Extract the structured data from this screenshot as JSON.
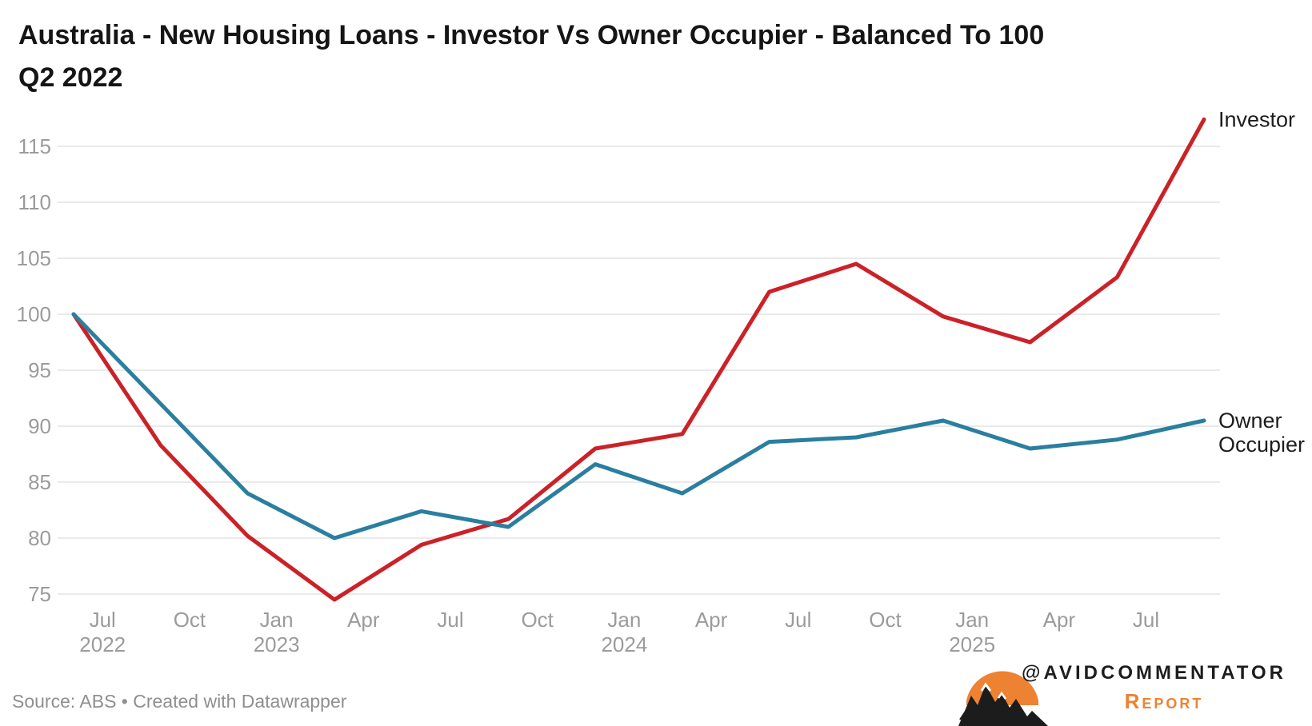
{
  "title": {
    "line1": "Australia - New Housing Loans - Investor Vs Owner Occupier - Balanced To 100",
    "line2": "Q2 2022"
  },
  "source_note": "Source: ABS • Created with Datawrapper",
  "branding": {
    "handle": "@AVIDCOMMENTATOR",
    "wordmark": "Report",
    "orange": "#ee8233",
    "icon": "mountain-sun-logo"
  },
  "chart_data": {
    "type": "line",
    "title": "Australia - New Housing Loans - Investor Vs Owner Occupier - Balanced To 100 Q2 2022",
    "x": [
      "Q2 2022",
      "Q3 2022",
      "Q4 2022",
      "Q1 2023",
      "Q2 2023",
      "Q3 2023",
      "Q4 2023",
      "Q1 2024",
      "Q2 2024",
      "Q3 2024",
      "Q4 2024",
      "Q1 2025",
      "Q2 2025",
      "Q3 2025"
    ],
    "series": [
      {
        "name": "Investor",
        "color": "#cb2127",
        "values": [
          100,
          88.3,
          80.2,
          74.5,
          79.4,
          81.7,
          88.0,
          89.3,
          102.0,
          104.5,
          99.8,
          97.5,
          103.3,
          117.4
        ]
      },
      {
        "name": "Owner Occupier",
        "color": "#2a7f9f",
        "values": [
          100,
          92.0,
          84.0,
          80.0,
          82.4,
          81.0,
          86.6,
          84.0,
          88.6,
          89.0,
          90.5,
          88.0,
          88.8,
          90.5
        ]
      }
    ],
    "ylabel": "",
    "xlabel": "",
    "ylim": [
      74,
      117.5
    ],
    "yticks": [
      75,
      80,
      85,
      90,
      95,
      100,
      105,
      110,
      115
    ],
    "xticks": [
      {
        "label": "Jul",
        "year": "2022",
        "month_index": 1
      },
      {
        "label": "Oct",
        "month_index": 4
      },
      {
        "label": "Jan",
        "year": "2023",
        "month_index": 7
      },
      {
        "label": "Apr",
        "month_index": 10
      },
      {
        "label": "Jul",
        "month_index": 13
      },
      {
        "label": "Oct",
        "month_index": 16
      },
      {
        "label": "Jan",
        "year": "2024",
        "month_index": 19
      },
      {
        "label": "Apr",
        "month_index": 22
      },
      {
        "label": "Jul",
        "month_index": 25
      },
      {
        "label": "Oct",
        "month_index": 28
      },
      {
        "label": "Jan",
        "year": "2025",
        "month_index": 31
      },
      {
        "label": "Apr",
        "month_index": 34
      },
      {
        "label": "Jul",
        "month_index": 37
      }
    ],
    "grid": "horizontal",
    "gridline_color": "#e4e4e4",
    "tick_label_color": "#9b9b9b",
    "series_label_color": "#1d1d1d",
    "legend_position": "line-end-labels",
    "baseline_index_value": 100
  }
}
